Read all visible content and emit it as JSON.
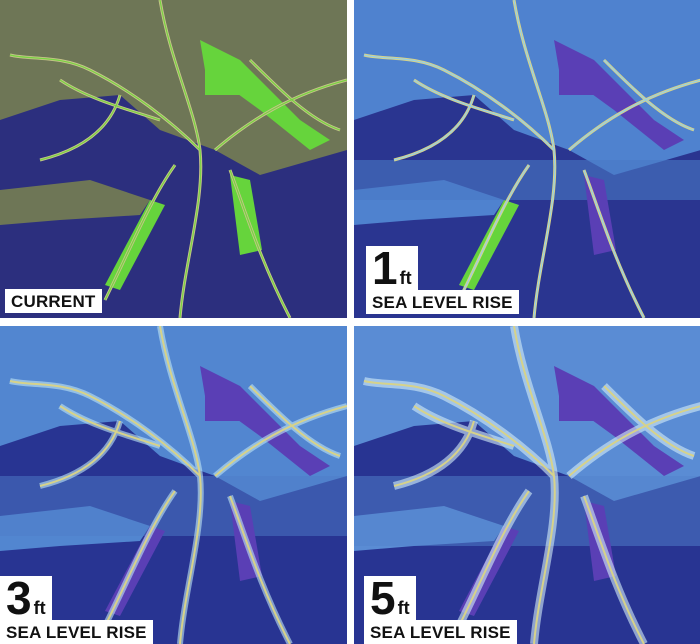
{
  "panels": [
    {
      "label": "CURRENT"
    },
    {
      "number": "1",
      "unit": "ft",
      "label": "SEA LEVEL RISE"
    },
    {
      "number": "3",
      "unit": "ft",
      "label": "SEA LEVEL RISE"
    },
    {
      "number": "5",
      "unit": "ft",
      "label": "SEA LEVEL RISE"
    }
  ]
}
